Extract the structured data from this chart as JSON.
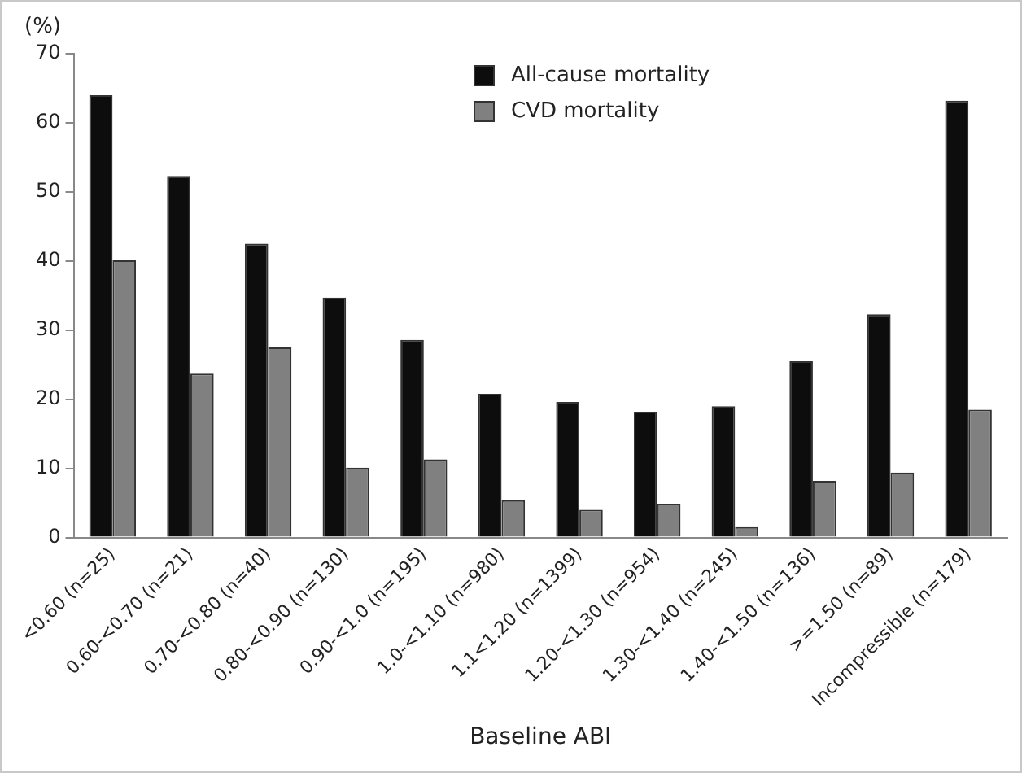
{
  "chart_data": {
    "type": "bar",
    "ylabel": "(%)",
    "xlabel": "Baseline ABI",
    "categories": [
      "<0.60 (n=25)",
      "0.60-<0.70 (n=21)",
      "0.70-<0.80 (n=40)",
      "0.80-<0.90 (n=130)",
      "0.90-<1.0 (n=195)",
      "1.0-<1.10 (n=980)",
      "1.1<1.20 (n=1399)",
      "1.20-<1.30 (n=954)",
      "1.30-<1.40 (n=245)",
      "1.40-<1.50 (n=136)",
      ">=1.50 (n=89)",
      "Incompressible (n=179)"
    ],
    "series": [
      {
        "name": "All-cause mortality",
        "color": "#0d0d0d",
        "values": [
          64.0,
          52.3,
          42.5,
          34.7,
          28.6,
          20.8,
          19.6,
          18.2,
          19.0,
          25.5,
          32.3,
          63.2
        ]
      },
      {
        "name": "CVD mortality",
        "color": "#808080",
        "values": [
          40.1,
          23.7,
          27.5,
          10.1,
          11.3,
          5.4,
          4.0,
          4.9,
          1.5,
          8.2,
          9.4,
          18.5
        ]
      }
    ],
    "ylim": [
      0,
      70
    ],
    "yticks": [
      0,
      10,
      20,
      30,
      40,
      50,
      60,
      70
    ],
    "grid": false,
    "legend": "top"
  }
}
